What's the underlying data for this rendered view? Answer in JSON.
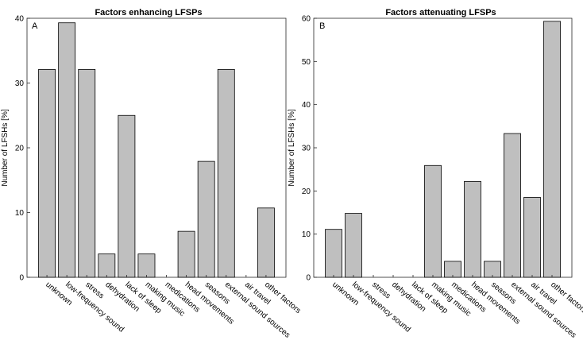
{
  "chart_data": [
    {
      "type": "bar",
      "panel_label": "A",
      "title": "Factors enhancing LFSPs",
      "ylabel": "Number of LFSHs [%]",
      "xlabel": "",
      "ylim": [
        0,
        40
      ],
      "yticks": [
        0,
        10,
        20,
        30,
        40
      ],
      "bar_color": "#bfbfbf",
      "categories": [
        "unknown",
        "low-frequency sound",
        "stress",
        "dehydration",
        "lack of sleep",
        "making music",
        "medications",
        "head movements",
        "seasons",
        "external sound sources",
        "air travel",
        "other factors"
      ],
      "values": [
        32.1,
        39.3,
        32.1,
        3.6,
        25.0,
        3.6,
        0,
        7.1,
        17.9,
        32.1,
        0,
        10.7
      ]
    },
    {
      "type": "bar",
      "panel_label": "B",
      "title": "Factors attenuating LFSPs",
      "ylabel": "Number of LFSHs [%]",
      "xlabel": "",
      "ylim": [
        0,
        60
      ],
      "yticks": [
        0,
        10,
        20,
        30,
        40,
        50,
        60
      ],
      "bar_color": "#bfbfbf",
      "categories": [
        "unknown",
        "low-frequency sound",
        "stress",
        "dehydration",
        "lack of sleep",
        "making music",
        "medications",
        "head movements",
        "seasons",
        "external sound sources",
        "air travel",
        "other factors"
      ],
      "values": [
        11.1,
        14.8,
        0,
        0,
        0,
        25.9,
        3.7,
        22.2,
        3.7,
        33.3,
        18.5,
        59.3
      ]
    }
  ]
}
